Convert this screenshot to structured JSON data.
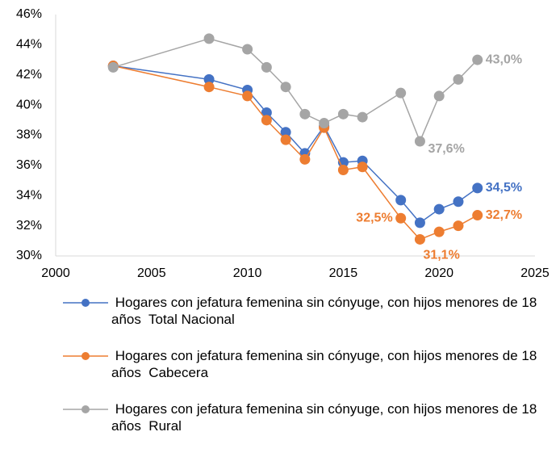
{
  "chart_data": {
    "type": "line",
    "x": [
      2003,
      2008,
      2010,
      2011,
      2012,
      2013,
      2014,
      2015,
      2016,
      2018,
      2019,
      2020,
      2021,
      2022
    ],
    "series": [
      {
        "name": " Hogares con jefatura femenina sin cónyuge, con hijos menores de 18 años  Total Nacional",
        "color": "#4472c4",
        "values": [
          42.6,
          41.7,
          41.0,
          39.5,
          38.2,
          36.8,
          38.6,
          36.2,
          36.3,
          33.7,
          32.2,
          33.1,
          33.6,
          34.5
        ],
        "value_labels": [
          null,
          null,
          null,
          null,
          null,
          null,
          null,
          null,
          null,
          null,
          null,
          null,
          null,
          "34,5%"
        ]
      },
      {
        "name": " Hogares con jefatura femenina sin cónyuge, con hijos menores de 18 años  Cabecera",
        "color": "#ed7d31",
        "values": [
          42.6,
          41.2,
          40.6,
          39.0,
          37.7,
          36.4,
          38.5,
          35.7,
          35.9,
          32.5,
          31.1,
          31.6,
          32.0,
          32.7
        ],
        "value_labels": [
          null,
          null,
          null,
          null,
          null,
          null,
          null,
          null,
          null,
          "32,5%",
          "31,1%",
          null,
          null,
          "32,7%"
        ]
      },
      {
        "name": " Hogares con jefatura femenina sin cónyuge, con hijos menores de 18 años  Rural",
        "color": "#a5a5a5",
        "values": [
          42.5,
          44.4,
          43.7,
          42.5,
          41.2,
          39.4,
          38.8,
          39.4,
          39.2,
          40.8,
          37.6,
          40.6,
          41.7,
          43.0
        ],
        "value_labels": [
          null,
          null,
          null,
          null,
          null,
          null,
          null,
          null,
          null,
          null,
          "37,6%",
          null,
          null,
          "43,0%"
        ]
      }
    ],
    "xlim": [
      2000,
      2025
    ],
    "xticks": [
      2000,
      2005,
      2010,
      2015,
      2020,
      2025
    ],
    "ylim": [
      30,
      46
    ],
    "yticks": [
      {
        "value": 30,
        "label": "30%"
      },
      {
        "value": 32,
        "label": "32%"
      },
      {
        "value": 34,
        "label": "34%"
      },
      {
        "value": 36,
        "label": "36%"
      },
      {
        "value": 38,
        "label": "38%"
      },
      {
        "value": 40,
        "label": "40%"
      },
      {
        "value": 42,
        "label": "42%"
      },
      {
        "value": 44,
        "label": "44%"
      },
      {
        "value": 46,
        "label": "46%"
      }
    ],
    "grid": false,
    "legend": "bottom"
  }
}
